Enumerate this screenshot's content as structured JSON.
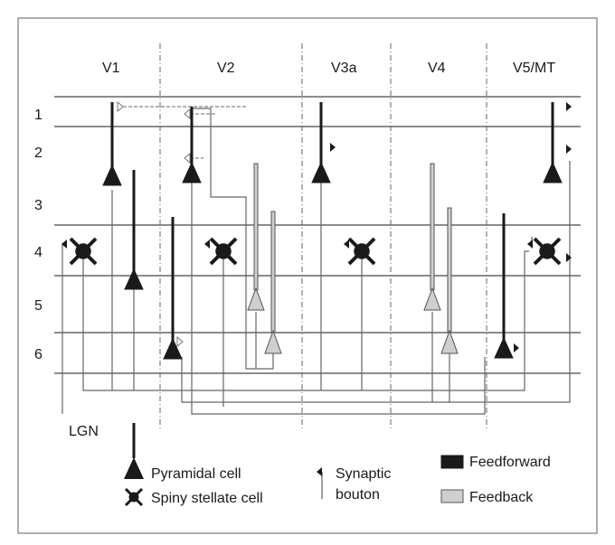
{
  "areas": [
    "V1",
    "V2",
    "V3a",
    "V4",
    "V5/MT"
  ],
  "layers": [
    "1",
    "2",
    "3",
    "4",
    "5",
    "6"
  ],
  "input_label": "LGN",
  "legend": {
    "pyramidal": "Pyramidal cell",
    "spiny_stellate": "Spiny stellate cell",
    "synaptic_line1": "Synaptic",
    "synaptic_line2": "bouton",
    "feedforward": "Feedforward",
    "feedback": "Feedback"
  },
  "colors": {
    "feedforward": "#1a1a1a",
    "feedback": "#c8c8c8",
    "lines": "#555555",
    "frame": "#777777"
  }
}
